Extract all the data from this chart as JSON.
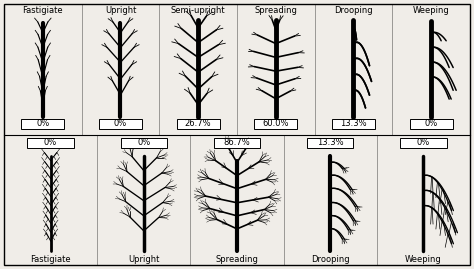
{
  "background_color": "#f0ede8",
  "border_color": "#000000",
  "top_row": {
    "labels": [
      "Fastigiate",
      "Upright",
      "Semi-upright",
      "Spreading",
      "Drooping",
      "Weeping"
    ],
    "percentages": [
      "0%",
      "0%",
      "26.7%",
      "60.0%",
      "13.3%",
      "0%"
    ],
    "n_cols": 6
  },
  "bottom_row": {
    "labels": [
      "Fastigiate",
      "Upright",
      "Spreading",
      "Drooping",
      "Weeping"
    ],
    "percentages": [
      "0%",
      "0%",
      "86.7%",
      "13.3%",
      "0%"
    ],
    "n_cols": 5
  },
  "fig_width": 4.74,
  "fig_height": 2.69,
  "dpi": 100,
  "label_fontsize": 6.0,
  "pct_fontsize": 6.0
}
